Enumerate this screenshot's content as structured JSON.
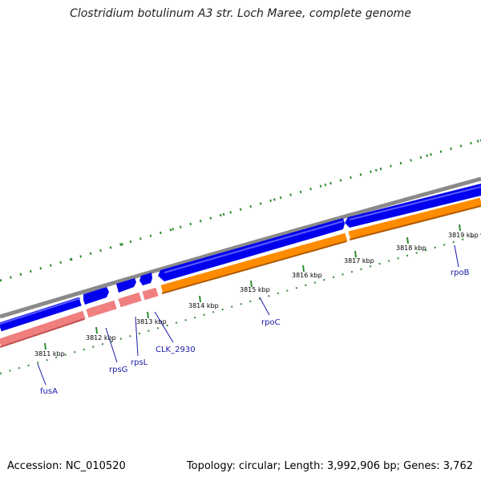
{
  "title": "Clostridium botulinum A3 str. Loch Maree, complete genome",
  "footer": {
    "accession": "Accession: NC_010520",
    "summary": "Topology: circular; Length: 3,992,906 bp; Genes: 3,762"
  },
  "ticks": [
    {
      "label": "3811 kbp",
      "kbp": 3811
    },
    {
      "label": "3812 kbp",
      "kbp": 3812
    },
    {
      "label": "3813 kbp",
      "kbp": 3813
    },
    {
      "label": "3814 kbp",
      "kbp": 3814
    },
    {
      "label": "3815 kbp",
      "kbp": 3815
    },
    {
      "label": "3816 kbp",
      "kbp": 3816
    },
    {
      "label": "3817 kbp",
      "kbp": 3817
    },
    {
      "label": "3818 kbp",
      "kbp": 3818
    },
    {
      "label": "3819 kbp",
      "kbp": 3819
    }
  ],
  "genes": [
    {
      "label": "fusA"
    },
    {
      "label": "rpsG"
    },
    {
      "label": "rpsL"
    },
    {
      "label": "CLK_2930"
    },
    {
      "label": "rpoC"
    },
    {
      "label": "rpoB"
    }
  ],
  "colors": {
    "backbone": "#8a8a8a",
    "cds": "#0000ee",
    "rna_gene": "#f08080",
    "gene": "#ff8c00",
    "ticks": "#2e8b2e",
    "label_text": "#1a1aa6"
  }
}
